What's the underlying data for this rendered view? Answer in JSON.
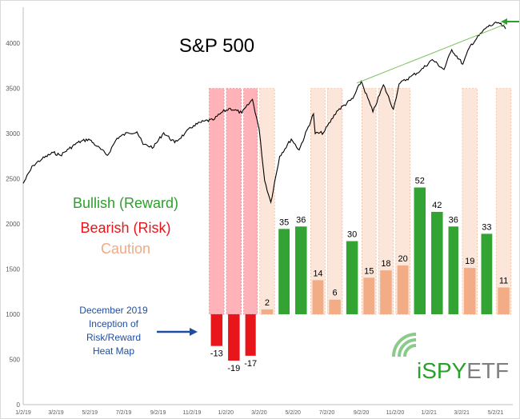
{
  "chart_data": {
    "type": "bar",
    "title": "S&P 500",
    "xlabel": "",
    "ylabel": "",
    "ylim": [
      0,
      4400
    ],
    "y_ticks": [
      0,
      500,
      1000,
      1500,
      2000,
      2500,
      3000,
      3500,
      4000
    ],
    "x_tick_labels": [
      "1/2/19",
      "3/2/19",
      "5/2/19",
      "7/2/19",
      "9/2/19",
      "11/2/19",
      "1/2/20",
      "3/2/20",
      "5/2/20",
      "7/2/20",
      "9/2/20",
      "11/2/20",
      "1/2/21",
      "3/2/21",
      "5/2/21"
    ],
    "legend": [
      {
        "label": "Bullish (Reward)",
        "color": "#2ca02c"
      },
      {
        "label": "Bearish (Risk)",
        "color": "#e8161b"
      },
      {
        "label": "Caution",
        "color": "#f2a983"
      }
    ],
    "colors": {
      "bullish": "#33a333",
      "bearish": "#e8161b",
      "caution": "#f2ac86",
      "index_line": "#000000",
      "trendline": "#7fbf66",
      "zone_red": "#ff9aa2",
      "zone_peach": "#fad5c0"
    },
    "risk_reward_bars": [
      {
        "period": "Dec 2019",
        "score": -13,
        "category": "bearish"
      },
      {
        "period": "Jan 2020",
        "score": -19,
        "category": "bearish"
      },
      {
        "period": "Feb 2020",
        "score": -17,
        "category": "bearish"
      },
      {
        "period": "Mar 2020",
        "score": 2,
        "category": "caution"
      },
      {
        "period": "Apr 2020",
        "score": 35,
        "category": "bullish"
      },
      {
        "period": "May 2020",
        "score": 36,
        "category": "bullish"
      },
      {
        "period": "Jun 2020",
        "score": 14,
        "category": "caution"
      },
      {
        "period": "Jul 2020",
        "score": 6,
        "category": "caution"
      },
      {
        "period": "Aug 2020",
        "score": 30,
        "category": "bullish"
      },
      {
        "period": "Sep 2020",
        "score": 15,
        "category": "caution"
      },
      {
        "period": "Oct 2020",
        "score": 18,
        "category": "caution"
      },
      {
        "period": "Nov 2020",
        "score": 20,
        "category": "caution"
      },
      {
        "period": "Dec 2020",
        "score": 52,
        "category": "bullish"
      },
      {
        "period": "Jan 2021",
        "score": 42,
        "category": "bullish"
      },
      {
        "period": "Feb 2021",
        "score": 36,
        "category": "bullish"
      },
      {
        "period": "Mar 2021",
        "score": 19,
        "category": "caution"
      },
      {
        "period": "Apr 2021",
        "score": 33,
        "category": "bullish"
      },
      {
        "period": "May 2021",
        "score": 11,
        "category": "caution"
      }
    ],
    "index_series": {
      "name": "S&P 500",
      "x": [
        "2019-01-02",
        "2019-01-20",
        "2019-02-05",
        "2019-02-25",
        "2019-03-10",
        "2019-03-25",
        "2019-04-10",
        "2019-04-30",
        "2019-05-15",
        "2019-06-03",
        "2019-06-20",
        "2019-07-10",
        "2019-07-26",
        "2019-08-06",
        "2019-08-25",
        "2019-09-12",
        "2019-10-02",
        "2019-10-20",
        "2019-11-05",
        "2019-11-25",
        "2019-12-10",
        "2019-12-27",
        "2020-01-10",
        "2020-01-31",
        "2020-02-19",
        "2020-03-02",
        "2020-03-12",
        "2020-03-23",
        "2020-04-08",
        "2020-04-29",
        "2020-05-13",
        "2020-06-08",
        "2020-06-11",
        "2020-06-26",
        "2020-07-20",
        "2020-08-18",
        "2020-09-02",
        "2020-09-23",
        "2020-10-12",
        "2020-10-30",
        "2020-11-09",
        "2020-11-30",
        "2020-12-18",
        "2021-01-08",
        "2021-01-29",
        "2021-02-12",
        "2021-03-04",
        "2021-03-17",
        "2021-04-16",
        "2021-05-07",
        "2021-05-20"
      ],
      "values": [
        2450,
        2650,
        2720,
        2790,
        2760,
        2830,
        2900,
        2940,
        2860,
        2760,
        2950,
        3010,
        3020,
        2880,
        2850,
        3010,
        2900,
        3000,
        3090,
        3140,
        3150,
        3240,
        3280,
        3230,
        3380,
        3050,
        2480,
        2240,
        2750,
        2940,
        2820,
        3220,
        3000,
        3010,
        3250,
        3390,
        3580,
        3240,
        3540,
        3270,
        3550,
        3630,
        3700,
        3820,
        3710,
        3930,
        3770,
        3970,
        4180,
        4230,
        4160
      ]
    },
    "annotations": [
      "December 2019",
      "Inception of",
      "Risk/Reward",
      "Heat Map"
    ],
    "logo": "iSPYETF"
  }
}
